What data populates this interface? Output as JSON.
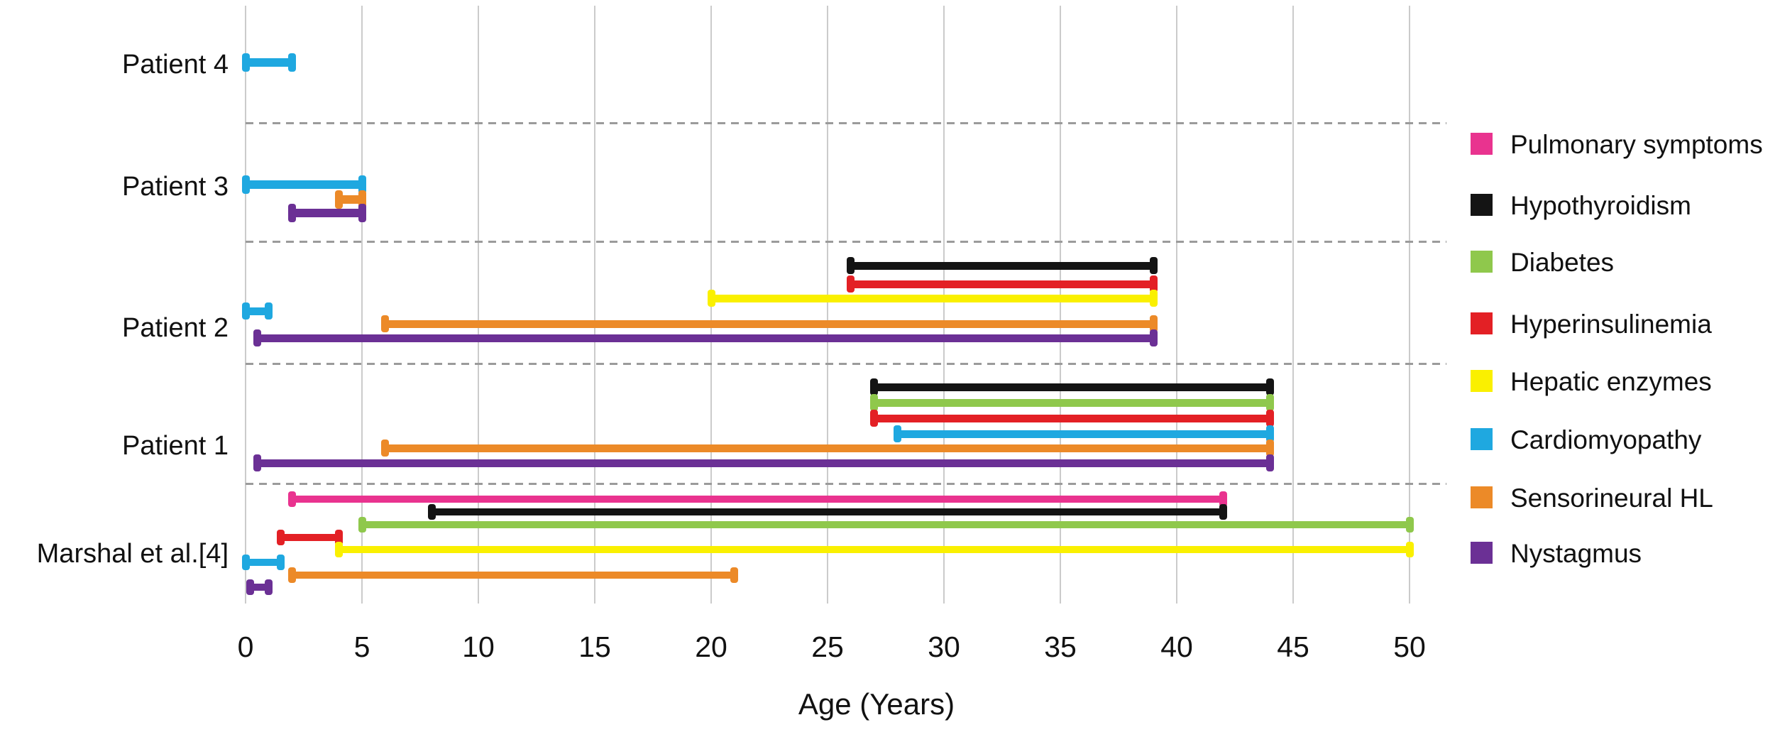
{
  "chart_data": {
    "type": "range-bar-timeline",
    "title": "",
    "xlabel": "Age (Years)",
    "x_ticks": [
      0,
      5,
      10,
      15,
      20,
      25,
      30,
      35,
      40,
      45,
      50
    ],
    "xlim": [
      0,
      50
    ],
    "grid": {
      "vertical": "solid",
      "group_separators": "horizontal-dashed"
    },
    "legend_position": "right",
    "legend": [
      {
        "label": "Pulmonary symptoms",
        "color": "#E9338F"
      },
      {
        "label": "Hypothyroidism",
        "color": "#141414"
      },
      {
        "label": "Diabetes",
        "color": "#8FC84C"
      },
      {
        "label": "Hyperinsulinemia",
        "color": "#E32025"
      },
      {
        "label": "Hepatic enzymes",
        "color": "#FAF000"
      },
      {
        "label": "Cardiomyopathy",
        "color": "#1FA8E0"
      },
      {
        "label": "Sensorineural HL",
        "color": "#EC8A28"
      },
      {
        "label": "Nystagmus",
        "color": "#6B3095"
      }
    ],
    "rows": [
      {
        "label": "Patient 4",
        "bars": [
          {
            "condition": "Cardiomyopathy",
            "start": 0,
            "end": 2
          }
        ]
      },
      {
        "label": "Patient 3",
        "bars": [
          {
            "condition": "Cardiomyopathy",
            "start": 0,
            "end": 5
          },
          {
            "condition": "Sensorineural HL",
            "start": 4,
            "end": 5
          },
          {
            "condition": "Nystagmus",
            "start": 2,
            "end": 5
          }
        ]
      },
      {
        "label": "Patient 2",
        "bars": [
          {
            "condition": "Hypothyroidism",
            "start": 26,
            "end": 39
          },
          {
            "condition": "Hyperinsulinemia",
            "start": 26,
            "end": 39
          },
          {
            "condition": "Hepatic enzymes",
            "start": 20,
            "end": 39
          },
          {
            "condition": "Cardiomyopathy",
            "start": 0,
            "end": 1
          },
          {
            "condition": "Sensorineural HL",
            "start": 6,
            "end": 39
          },
          {
            "condition": "Nystagmus",
            "start": 0.5,
            "end": 39
          }
        ]
      },
      {
        "label": "Patient 1",
        "bars": [
          {
            "condition": "Hypothyroidism",
            "start": 27,
            "end": 44
          },
          {
            "condition": "Diabetes",
            "start": 27,
            "end": 44
          },
          {
            "condition": "Hyperinsulinemia",
            "start": 27,
            "end": 44
          },
          {
            "condition": "Cardiomyopathy",
            "start": 28,
            "end": 44
          },
          {
            "condition": "Sensorineural HL",
            "start": 6,
            "end": 44
          },
          {
            "condition": "Nystagmus",
            "start": 0.5,
            "end": 44
          }
        ]
      },
      {
        "label": "Marshal et al.[4]",
        "bars": [
          {
            "condition": "Pulmonary symptoms",
            "start": 2,
            "end": 42
          },
          {
            "condition": "Hypothyroidism",
            "start": 8,
            "end": 42
          },
          {
            "condition": "Diabetes",
            "start": 5,
            "end": 50
          },
          {
            "condition": "Hyperinsulinemia",
            "start": 1.5,
            "end": 4
          },
          {
            "condition": "Hepatic enzymes",
            "start": 4,
            "end": 50
          },
          {
            "condition": "Cardiomyopathy",
            "start": 0,
            "end": 1.5
          },
          {
            "condition": "Sensorineural HL",
            "start": 2,
            "end": 21
          },
          {
            "condition": "Nystagmus",
            "start": 0.2,
            "end": 1
          }
        ]
      }
    ]
  }
}
